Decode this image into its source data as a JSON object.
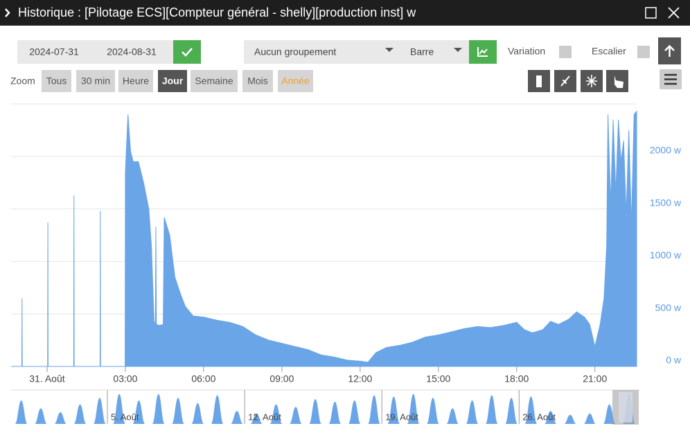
{
  "header": {
    "title": "Historique : [Pilotage ECS][Compteur général - shelly][production inst] w"
  },
  "toolbar": {
    "start_date": "2024-07-31",
    "end_date": "2024-08-31",
    "grouping": "Aucun groupement",
    "chart_type": "Barre",
    "variation": "Variation",
    "stairs": "Escalier"
  },
  "zoom": {
    "label": "Zoom",
    "options": [
      "Tous",
      "30 min",
      "Heure",
      "Jour",
      "Semaine",
      "Mois",
      "Année"
    ]
  },
  "chart_data": {
    "type": "area",
    "color": "#6aa5e8",
    "grid": true,
    "x": [
      -1.38,
      -0.97,
      -0.96,
      -0.95,
      0.02,
      0.03,
      0.04,
      1.02,
      1.03,
      1.04,
      2.03,
      2.04,
      2.05,
      2.99,
      3.0,
      3.1,
      3.2,
      3.3,
      3.5,
      3.7,
      3.9,
      4.0,
      4.1,
      4.15,
      4.17,
      4.19,
      4.3,
      4.45,
      4.49,
      4.7,
      4.9,
      5.1,
      5.3,
      5.6,
      6.0,
      6.5,
      7.0,
      7.5,
      8.0,
      8.5,
      9.0,
      9.5,
      10.0,
      10.5,
      11.0,
      11.5,
      12.0,
      12.3,
      12.6,
      13.0,
      13.5,
      14.0,
      14.5,
      15.0,
      15.5,
      16.0,
      16.5,
      17.0,
      17.5,
      18.0,
      18.3,
      18.6,
      19.0,
      19.3,
      19.6,
      20.0,
      20.3,
      20.6,
      20.8,
      21.0,
      21.2,
      21.35,
      21.45,
      21.5,
      21.6,
      21.7,
      21.8,
      21.9,
      22.0,
      22.1,
      22.2,
      22.3,
      22.4,
      22.5,
      22.6
    ],
    "values": [
      0,
      0,
      650,
      0,
      0,
      1370,
      0,
      0,
      1630,
      0,
      0,
      1480,
      0,
      0,
      1850,
      2400,
      2050,
      1950,
      1950,
      1750,
      1500,
      1150,
      430,
      400,
      1330,
      400,
      390,
      400,
      1420,
      1250,
      850,
      700,
      570,
      480,
      470,
      440,
      420,
      380,
      300,
      250,
      220,
      190,
      160,
      110,
      90,
      60,
      50,
      40,
      130,
      180,
      200,
      230,
      280,
      300,
      330,
      360,
      380,
      370,
      390,
      420,
      350,
      320,
      350,
      430,
      400,
      450,
      520,
      470,
      400,
      190,
      400,
      650,
      1150,
      2400,
      1550,
      2350,
      1650,
      2350,
      1950,
      2150,
      1450,
      2250,
      1350,
      2400,
      2430
    ],
    "xlim": [
      -1.38,
      22.6
    ],
    "ylim": [
      0,
      2500
    ],
    "xticks": [
      {
        "value": 0,
        "label": "31. Août"
      },
      {
        "value": 3,
        "label": "03:00"
      },
      {
        "value": 6,
        "label": "06:00"
      },
      {
        "value": 9,
        "label": "09:00"
      },
      {
        "value": 12,
        "label": "12:00"
      },
      {
        "value": 15,
        "label": "15:00"
      },
      {
        "value": 18,
        "label": "18:00"
      },
      {
        "value": 21,
        "label": "21:00"
      }
    ],
    "yticks": [
      {
        "value": 0,
        "label": "0 w"
      },
      {
        "value": 500,
        "label": "500 w"
      },
      {
        "value": 1000,
        "label": "1000 w"
      },
      {
        "value": 1500,
        "label": "1500 w"
      },
      {
        "value": 2000,
        "label": "2000 w"
      }
    ]
  },
  "navigator": {
    "labels": [
      "5. Août",
      "12. Août",
      "19. Août",
      "26. Août"
    ],
    "values": [
      1800,
      1200,
      900,
      1500,
      2000,
      2300,
      1800,
      2300,
      2000,
      1600,
      2200,
      1000,
      800,
      1500,
      1300,
      1900,
      1700,
      1800,
      2200,
      2100,
      2300,
      2000,
      1200,
      1800,
      2200,
      2000,
      2100,
      1000,
      700,
      800,
      1500,
      2300
    ]
  }
}
